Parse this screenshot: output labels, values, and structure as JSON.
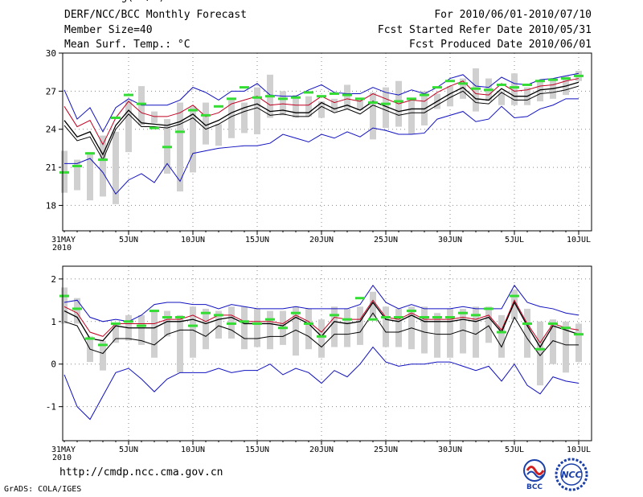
{
  "header": {
    "title": "DERF/NCC/BCC Monthly Forecast",
    "members": "Member Size=40",
    "variable": "Mean Surf. Temp.: °C",
    "period": "For 2010/06/01-2010/07/10",
    "start_date": "Fcst Started Refer Date 2010/05/31",
    "produced": "Fcst Produced Date 2010/06/01"
  },
  "footer": {
    "url": "http://cmdp.ncc.cma.gov.cn",
    "grads": "GrADS: COLA/IGES",
    "logo1_text": "BCC",
    "logo2_text": "NCC"
  },
  "colors": {
    "max_line": "#1010c0",
    "mean_line": "#000000",
    "plus_line": "#c00020",
    "observed": "#33dd33",
    "spread_box": "#d0d0d0"
  },
  "chart_data": [
    {
      "name": "temperature",
      "type": "line",
      "title": "",
      "ylabel": "",
      "ylim": [
        16,
        30
      ],
      "yticks": [
        18,
        21,
        24,
        27,
        30
      ],
      "x_start_label": "31MAY",
      "x_start_sub": "2010",
      "x_tick_labels": [
        "5JUN",
        "10JUN",
        "15JUN",
        "20JUN",
        "25JUN",
        "30JUN",
        "5JUL",
        "10JUL"
      ],
      "series": [
        {
          "name": "max",
          "values": [
            27.1,
            24.8,
            25.7,
            23.8,
            25.7,
            26.4,
            25.9,
            25.9,
            25.9,
            26.3,
            27.3,
            26.9,
            26.3,
            27.0,
            27.0,
            27.6,
            26.7,
            26.6,
            26.6,
            27.1,
            27.5,
            26.9,
            26.8,
            26.8,
            27.3,
            26.9,
            26.7,
            27.1,
            26.8,
            27.3,
            28.0,
            28.3,
            27.4,
            27.3,
            28.1,
            27.6,
            27.5,
            27.9,
            28.0,
            28.2,
            28.4
          ]
        },
        {
          "name": "plus_sd",
          "values": [
            25.8,
            24.2,
            24.7,
            22.8,
            24.9,
            26.2,
            25.3,
            25.0,
            25.0,
            25.3,
            25.9,
            25.0,
            25.3,
            26.0,
            26.3,
            26.6,
            25.9,
            26.0,
            25.9,
            25.9,
            26.6,
            26.1,
            26.4,
            26.2,
            26.8,
            26.4,
            26.0,
            26.3,
            26.2,
            26.9,
            27.4,
            27.8,
            26.8,
            26.7,
            27.6,
            27.0,
            27.1,
            27.4,
            27.5,
            27.8,
            28.0
          ]
        },
        {
          "name": "mean",
          "values": [
            24.7,
            23.4,
            23.8,
            22.0,
            24.3,
            25.5,
            24.5,
            24.4,
            24.3,
            24.6,
            25.2,
            24.3,
            24.7,
            25.3,
            25.7,
            26.0,
            25.4,
            25.5,
            25.3,
            25.3,
            26.1,
            25.6,
            25.9,
            25.5,
            26.2,
            25.8,
            25.4,
            25.6,
            25.6,
            26.2,
            26.8,
            27.3,
            26.4,
            26.3,
            27.2,
            26.6,
            26.6,
            27.1,
            27.2,
            27.4,
            27.7
          ]
        },
        {
          "name": "minus_sd",
          "values": [
            24.3,
            23.1,
            23.4,
            21.6,
            24.0,
            25.2,
            24.2,
            24.2,
            24.1,
            24.4,
            24.9,
            24.0,
            24.4,
            25.0,
            25.4,
            25.7,
            25.1,
            25.2,
            25.0,
            25.0,
            25.8,
            25.3,
            25.6,
            25.2,
            25.9,
            25.5,
            25.1,
            25.3,
            25.3,
            25.9,
            26.5,
            27.0,
            26.1,
            26.0,
            26.9,
            26.3,
            26.3,
            26.8,
            26.9,
            27.1,
            27.4
          ]
        },
        {
          "name": "min",
          "values": [
            21.3,
            21.3,
            21.7,
            20.6,
            18.9,
            20.0,
            20.5,
            19.8,
            21.3,
            19.9,
            22.1,
            22.3,
            22.5,
            22.6,
            22.7,
            22.7,
            22.9,
            23.6,
            23.3,
            23.0,
            23.6,
            23.3,
            23.8,
            23.4,
            24.1,
            23.9,
            23.6,
            23.6,
            23.7,
            24.8,
            25.1,
            25.4,
            24.6,
            24.8,
            25.8,
            24.9,
            25.0,
            25.6,
            25.9,
            26.4,
            26.4
          ]
        },
        {
          "name": "spread_hi",
          "values": [
            22.3,
            21.6,
            22.2,
            23.5,
            23.8,
            26.3,
            27.4,
            25.4,
            24.8,
            26.1,
            25.8,
            26.1,
            24.4,
            26.3,
            26.1,
            27.3,
            28.3,
            27.0,
            26.7,
            26.6,
            26.2,
            26.4,
            27.5,
            26.4,
            26.9,
            27.3,
            27.8,
            26.3,
            27.0,
            26.8,
            27.4,
            28.0,
            28.8,
            28.0,
            27.0,
            28.4,
            27.3,
            27.8,
            28.0,
            28.2,
            28.6
          ]
        },
        {
          "name": "spread_lo",
          "values": [
            19.0,
            19.2,
            18.4,
            18.7,
            18.1,
            22.2,
            24.3,
            24.5,
            20.5,
            19.1,
            20.6,
            22.8,
            22.7,
            23.3,
            23.7,
            23.6,
            24.9,
            25.1,
            24.9,
            25.0,
            24.9,
            25.4,
            25.6,
            25.5,
            23.2,
            24.1,
            24.2,
            23.6,
            24.3,
            25.6,
            25.8,
            26.4,
            25.4,
            26.2,
            25.9,
            25.9,
            25.9,
            26.2,
            26.4,
            26.7,
            27.8
          ]
        },
        {
          "name": "observed",
          "values": [
            20.6,
            21.1,
            22.1,
            21.6,
            24.9,
            26.7,
            26.0,
            24.1,
            22.6,
            23.8,
            25.5,
            25.1,
            25.8,
            26.4,
            27.3,
            26.5,
            26.6,
            26.4,
            26.5,
            26.9,
            26.6,
            26.8,
            26.7,
            26.4,
            26.1,
            26.0,
            26.2,
            26.4,
            26.7,
            27.3,
            27.8,
            27.6,
            27.2,
            27.1,
            27.5,
            27.3,
            27.5,
            27.8,
            27.9,
            28.0,
            28.2
          ]
        }
      ]
    },
    {
      "name": "precipitation",
      "type": "line",
      "title": "Prec.: log(mm/d)",
      "ylabel": "",
      "ylim": [
        -1.8,
        2.3
      ],
      "yticks": [
        -1,
        0,
        1,
        2
      ],
      "x_start_label": "31MAY",
      "x_start_sub": "2010",
      "x_tick_labels": [
        "5JUN",
        "10JUN",
        "15JUN",
        "20JUN",
        "25JUN",
        "30JUN",
        "5JUL",
        "10JUL"
      ],
      "series": [
        {
          "name": "max",
          "values": [
            1.45,
            1.5,
            1.1,
            1.0,
            1.05,
            1.0,
            1.15,
            1.4,
            1.45,
            1.45,
            1.4,
            1.4,
            1.3,
            1.4,
            1.35,
            1.3,
            1.3,
            1.3,
            1.35,
            1.3,
            1.3,
            1.3,
            1.3,
            1.4,
            1.85,
            1.45,
            1.3,
            1.4,
            1.3,
            1.3,
            1.3,
            1.35,
            1.3,
            1.3,
            1.3,
            1.85,
            1.45,
            1.35,
            1.3,
            1.2,
            1.15
          ]
        },
        {
          "name": "plus_sd",
          "values": [
            1.35,
            1.2,
            0.75,
            0.65,
            0.95,
            0.95,
            0.95,
            0.95,
            1.05,
            1.05,
            1.15,
            1.0,
            1.15,
            1.15,
            1.0,
            1.0,
            1.0,
            0.95,
            1.15,
            1.0,
            0.75,
            1.1,
            1.05,
            1.05,
            1.5,
            1.1,
            1.05,
            1.2,
            1.05,
            1.05,
            1.05,
            1.1,
            1.05,
            1.15,
            0.8,
            1.5,
            0.95,
            0.5,
            0.95,
            0.85,
            0.8
          ]
        },
        {
          "name": "mean",
          "values": [
            1.25,
            1.1,
            0.6,
            0.55,
            0.9,
            0.85,
            0.85,
            0.85,
            1.0,
            1.0,
            1.05,
            0.95,
            1.05,
            1.1,
            0.95,
            0.95,
            0.95,
            0.9,
            1.1,
            0.95,
            0.65,
            1.0,
            0.95,
            1.0,
            1.45,
            1.05,
            1.0,
            1.15,
            1.0,
            1.0,
            1.0,
            1.05,
            1.0,
            1.1,
            0.75,
            1.45,
            0.9,
            0.4,
            0.9,
            0.8,
            0.7
          ]
        },
        {
          "name": "minus_sd",
          "values": [
            1.0,
            0.9,
            0.35,
            0.25,
            0.6,
            0.6,
            0.55,
            0.45,
            0.7,
            0.8,
            0.8,
            0.65,
            0.9,
            0.8,
            0.6,
            0.6,
            0.65,
            0.65,
            0.8,
            0.65,
            0.4,
            0.7,
            0.7,
            0.75,
            1.2,
            0.75,
            0.75,
            0.85,
            0.75,
            0.7,
            0.7,
            0.8,
            0.7,
            0.9,
            0.4,
            1.1,
            0.6,
            0.2,
            0.55,
            0.45,
            0.45
          ]
        },
        {
          "name": "min",
          "values": [
            -0.25,
            -1.0,
            -1.3,
            -0.75,
            -0.2,
            -0.1,
            -0.35,
            -0.65,
            -0.35,
            -0.2,
            -0.2,
            -0.2,
            -0.1,
            -0.2,
            -0.15,
            -0.15,
            0.0,
            -0.25,
            -0.1,
            -0.2,
            -0.45,
            -0.15,
            -0.3,
            0.0,
            0.4,
            0.05,
            -0.05,
            0.0,
            0.0,
            0.05,
            0.05,
            -0.05,
            -0.15,
            -0.05,
            -0.4,
            0.0,
            -0.5,
            -0.7,
            -0.3,
            -0.4,
            -0.45
          ]
        },
        {
          "name": "spread_hi",
          "values": [
            1.8,
            1.55,
            0.65,
            0.55,
            0.95,
            1.15,
            1.15,
            1.25,
            1.25,
            1.15,
            1.35,
            1.3,
            1.25,
            1.35,
            1.35,
            1.3,
            1.25,
            1.25,
            1.35,
            1.3,
            1.05,
            1.35,
            1.3,
            1.35,
            1.7,
            1.35,
            1.3,
            1.35,
            1.35,
            1.2,
            1.3,
            1.3,
            1.35,
            1.35,
            1.15,
            1.75,
            1.3,
            1.0,
            1.05,
            1.0,
            0.95
          ]
        },
        {
          "name": "spread_lo",
          "values": [
            0.95,
            0.95,
            0.05,
            -0.15,
            0.5,
            0.55,
            0.45,
            0.15,
            0.65,
            -0.2,
            0.15,
            0.35,
            0.6,
            0.6,
            0.35,
            0.4,
            0.35,
            0.45,
            0.2,
            0.35,
            0.15,
            0.4,
            0.4,
            0.45,
            1.1,
            0.4,
            0.4,
            0.35,
            0.25,
            0.15,
            0.15,
            0.25,
            0.15,
            0.5,
            0.15,
            1.05,
            0.15,
            -0.5,
            0.0,
            -0.2,
            0.05
          ]
        },
        {
          "name": "observed",
          "values": [
            1.6,
            1.3,
            0.6,
            0.45,
            0.95,
            1.0,
            0.9,
            1.25,
            1.1,
            1.1,
            0.9,
            1.2,
            1.15,
            0.95,
            1.0,
            0.95,
            1.05,
            0.85,
            1.2,
            0.95,
            0.65,
            1.15,
            1.05,
            1.55,
            1.05,
            1.1,
            1.1,
            1.25,
            1.1,
            1.1,
            1.1,
            1.2,
            1.15,
            1.3,
            0.75,
            1.6,
            0.95,
            0.35,
            0.95,
            0.85,
            0.7
          ]
        }
      ]
    }
  ]
}
